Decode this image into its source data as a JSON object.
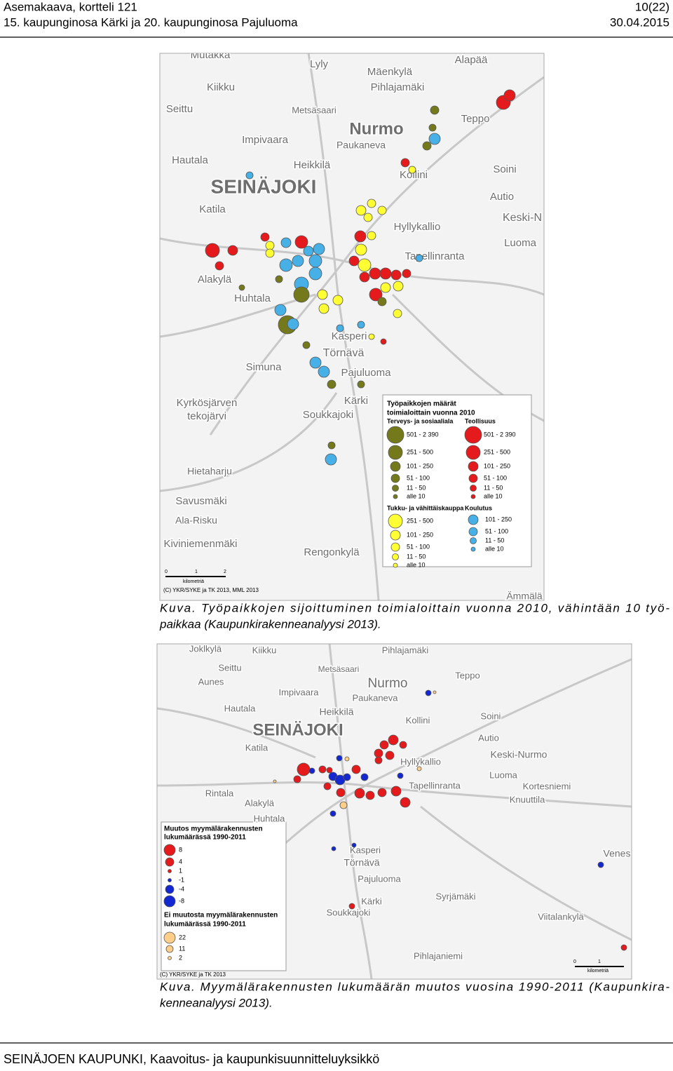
{
  "header": {
    "title": "Asemakaava, kortteli 121",
    "page": "10(22)",
    "subtitle": "15. kaupunginosa Kärki ja 20. kaupunginosa Pajuluoma",
    "date": "30.04.2015"
  },
  "figures": [
    {
      "map": {
        "places": [
          "Mutakka",
          "Lyly",
          "Mäenkylä",
          "Alapää",
          "Kiikku",
          "Pihlajamäki",
          "Seittu",
          "Metsäsaari",
          "Nurmo",
          "Teppo",
          "Impivaara",
          "Paukaneva",
          "Hautala",
          "Heikkilä",
          "Soini",
          "SEINÄJOKI",
          "Kollini",
          "Autio",
          "Katila",
          "Keski-N",
          "Hyllykallio",
          "Luoma",
          "Tapellinranta",
          "Alakylä",
          "Huhtala",
          "Kasperi",
          "Törnävä",
          "Simuna",
          "Pajuluoma",
          "Kyrkösjärven",
          "tekojärvi",
          "Kärki",
          "Soukkajoki",
          "Hietaharju",
          "Savusmäki",
          "Ala-Risku",
          "Kiviniemenmäki",
          "Rengonkylä",
          "Ämmälä"
        ],
        "legend": {
          "title": [
            "Työpaikkojen määrät",
            "toimialoittain vuonna 2010"
          ],
          "groups": [
            {
              "title": "Terveys- ja sosiaaliala",
              "items": [
                "501 - 2 390",
                "251 - 500",
                "101 - 250",
                "51 - 100",
                "11 - 50",
                "alle 10"
              ]
            },
            {
              "title": "Teollisuus",
              "items": [
                "501 - 2 390",
                "251 - 500",
                "101 - 250",
                "51 - 100",
                "11 - 50",
                "alle 10"
              ]
            },
            {
              "title": "Tukku- ja vähittäiskauppa",
              "items": [
                "251 - 500",
                "101 - 250",
                "51 - 100",
                "11 - 50",
                "alle 10"
              ]
            },
            {
              "title": "Koulutus",
              "items": [
                "101 - 250",
                "51 - 100",
                "11 - 50",
                "alle 10"
              ]
            }
          ]
        },
        "scale": [
          "0",
          "1",
          "2",
          "kilometriä"
        ],
        "credit": "(C) YKR/SYKE ja TK 2013, MML 2013"
      },
      "caption": [
        "Kuva. Työpaikkojen sijoittuminen toimialoittain vuonna 2010, vähintään 10 työ-",
        "paikkaa (Kaupunkirakenneanalyysi 2013)."
      ]
    },
    {
      "map": {
        "places": [
          "Joklkylä",
          "Kiikku",
          "Pihlajamäki",
          "Seittu",
          "Metsäsaari",
          "Nurmo",
          "Teppo",
          "Aunes",
          "Impivaara",
          "Paukaneva",
          "Hautala",
          "Heikkilä",
          "SEINÄJOKI",
          "Kollini",
          "Soini",
          "Katila",
          "Autio",
          "Keski-Nurmo",
          "Hyllykallio",
          "Luoma",
          "Kortesniemi",
          "Rintala",
          "Alakylä",
          "Tapellinranta",
          "Knuuttila",
          "Huhtala",
          "Kasperi",
          "Törnävä",
          "Pajuluoma",
          "Kärki",
          "Soukkajoki",
          "Syrjämäki",
          "Viitalankylä",
          "Pihlajaniemi",
          "Venes"
        ],
        "legend": {
          "groups": [
            {
              "title": [
                "Muutos myymälärakennusten",
                "lukumäärässä 1990-2011"
              ],
              "items": [
                "8",
                "4",
                "1",
                "-1",
                "-4",
                "-8"
              ]
            },
            {
              "title": [
                "Ei muutosta myymälärakennusten",
                "lukumäärässä 1990-2011"
              ],
              "items": [
                "22",
                "11",
                "2"
              ]
            }
          ]
        },
        "scale": [
          "0",
          "1",
          "kilometriä"
        ],
        "credit": "(C) YKR/SYKE ja TK 2013"
      },
      "caption": [
        "Kuva. Myymälärakennusten lukumäärän muutos vuosina 1990-2011 (Kaupunkira-",
        "kenneanalyysi 2013)."
      ]
    }
  ],
  "footer": "SEINÄJOEN KAUPUNKI, Kaavoitus- ja kaupunkisuunnitteluyksikkö"
}
